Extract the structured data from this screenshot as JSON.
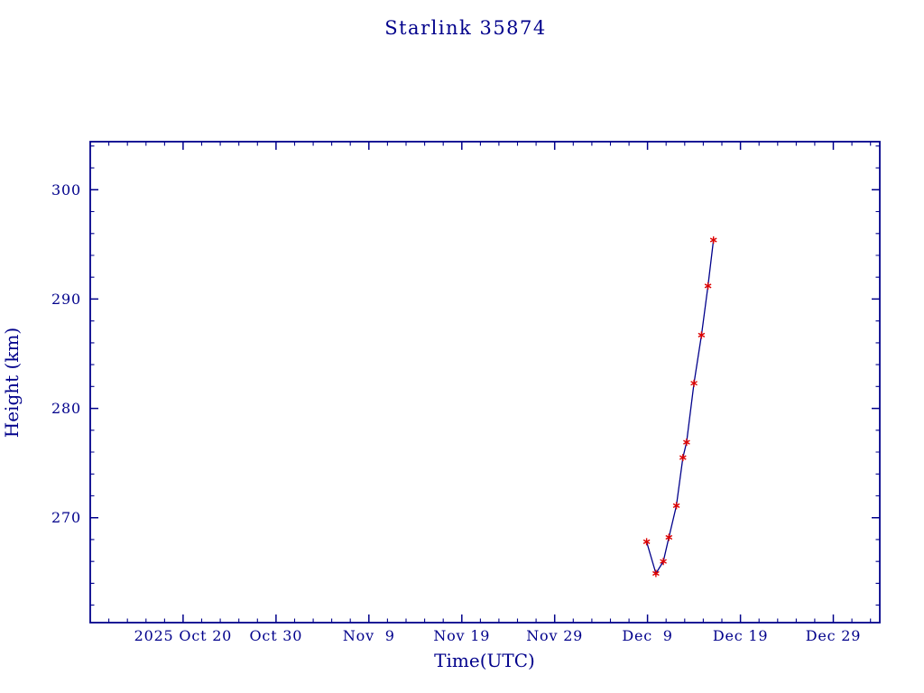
{
  "title": "Starlink 35874",
  "colors": {
    "background": "#ffffff",
    "frame": "#00008b",
    "text": "#00008b",
    "line": "#00008b",
    "marker": "#dd0000"
  },
  "chart_data": {
    "type": "line",
    "title": "Starlink 35874",
    "xlabel": "Time(UTC)",
    "ylabel": "Height (km)",
    "x_unit": "days since 2025 Oct 20",
    "xlim": [
      -10,
      75
    ],
    "ylim": [
      260.4,
      304.4
    ],
    "grid": false,
    "legend": "none",
    "marker": "asterisk",
    "x_ticks": [
      {
        "day": 0,
        "label": "2025 Oct 20"
      },
      {
        "day": 10,
        "label": "Oct 30"
      },
      {
        "day": 20,
        "label": "Nov  9"
      },
      {
        "day": 30,
        "label": "Nov 19"
      },
      {
        "day": 40,
        "label": "Nov 29"
      },
      {
        "day": 50,
        "label": "Dec  9"
      },
      {
        "day": 60,
        "label": "Dec 19"
      },
      {
        "day": 70,
        "label": "Dec 29"
      }
    ],
    "x_minor_step": 2,
    "y_ticks": [
      270,
      280,
      290,
      300
    ],
    "y_minor_step": 2,
    "series": [
      {
        "name": "orbit-height",
        "points": [
          {
            "date": "2025 Dec 8.9",
            "day": 49.9,
            "height_km": 267.8
          },
          {
            "date": "2025 Dec 9.9",
            "day": 50.9,
            "height_km": 264.9
          },
          {
            "date": "2025 Dec 10.7",
            "day": 51.7,
            "height_km": 266.0
          },
          {
            "date": "2025 Dec 11.3",
            "day": 52.3,
            "height_km": 268.2
          },
          {
            "date": "2025 Dec 12.1",
            "day": 53.1,
            "height_km": 271.1
          },
          {
            "date": "2025 Dec 12.8",
            "day": 53.8,
            "height_km": 275.5
          },
          {
            "date": "2025 Dec 13.2",
            "day": 54.2,
            "height_km": 276.9
          },
          {
            "date": "2025 Dec 14.0",
            "day": 55.0,
            "height_km": 282.3
          },
          {
            "date": "2025 Dec 14.8",
            "day": 55.8,
            "height_km": 286.7
          },
          {
            "date": "2025 Dec 15.5",
            "day": 56.5,
            "height_km": 291.2
          },
          {
            "date": "2025 Dec 16.1",
            "day": 57.1,
            "height_km": 295.4
          }
        ]
      }
    ]
  }
}
